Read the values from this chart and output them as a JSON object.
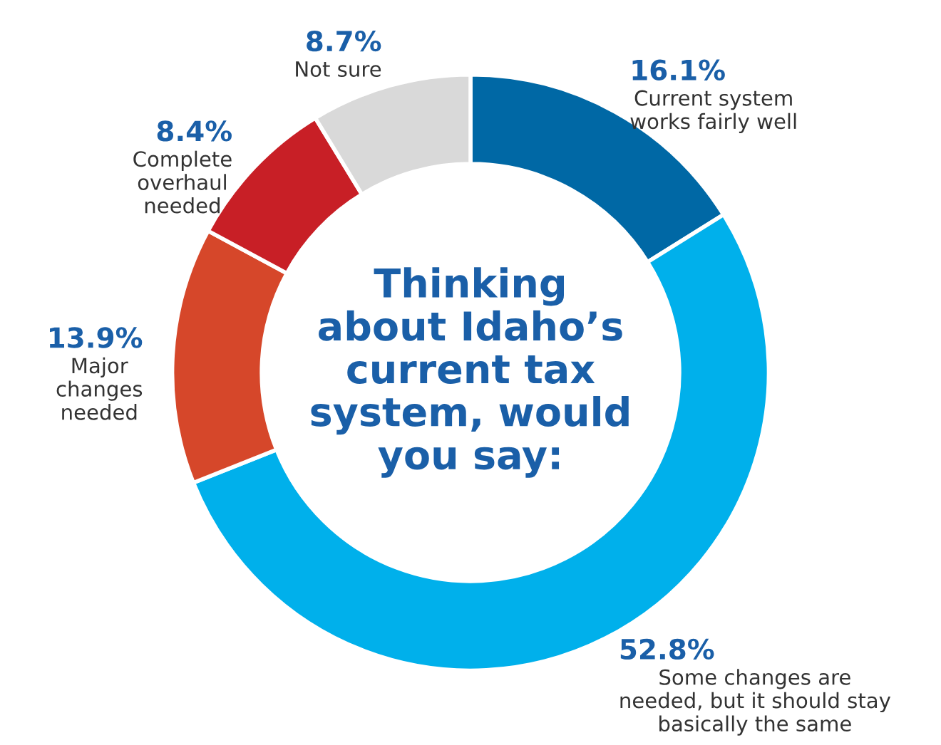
{
  "chart_data": {
    "type": "donut",
    "title": "Thinking about Idaho’s current tax system, would you say:",
    "categories": [
      "Current system\nworks fairly well",
      "Some changes are\nneeded, but it should stay\nbasically the same",
      "Major\nchanges\nneeded",
      "Complete\noverhaul\nneeded",
      "Not sure"
    ],
    "values": [
      16.1,
      52.8,
      13.9,
      8.4,
      8.7
    ],
    "colors": [
      "#0068a5",
      "#00b0eb",
      "#d6472a",
      "#c81f26",
      "#d9d9d9"
    ],
    "value_labels": [
      "16.1%",
      "52.8%",
      "13.9%",
      "8.4%",
      "8.7%"
    ],
    "legend": false
  }
}
